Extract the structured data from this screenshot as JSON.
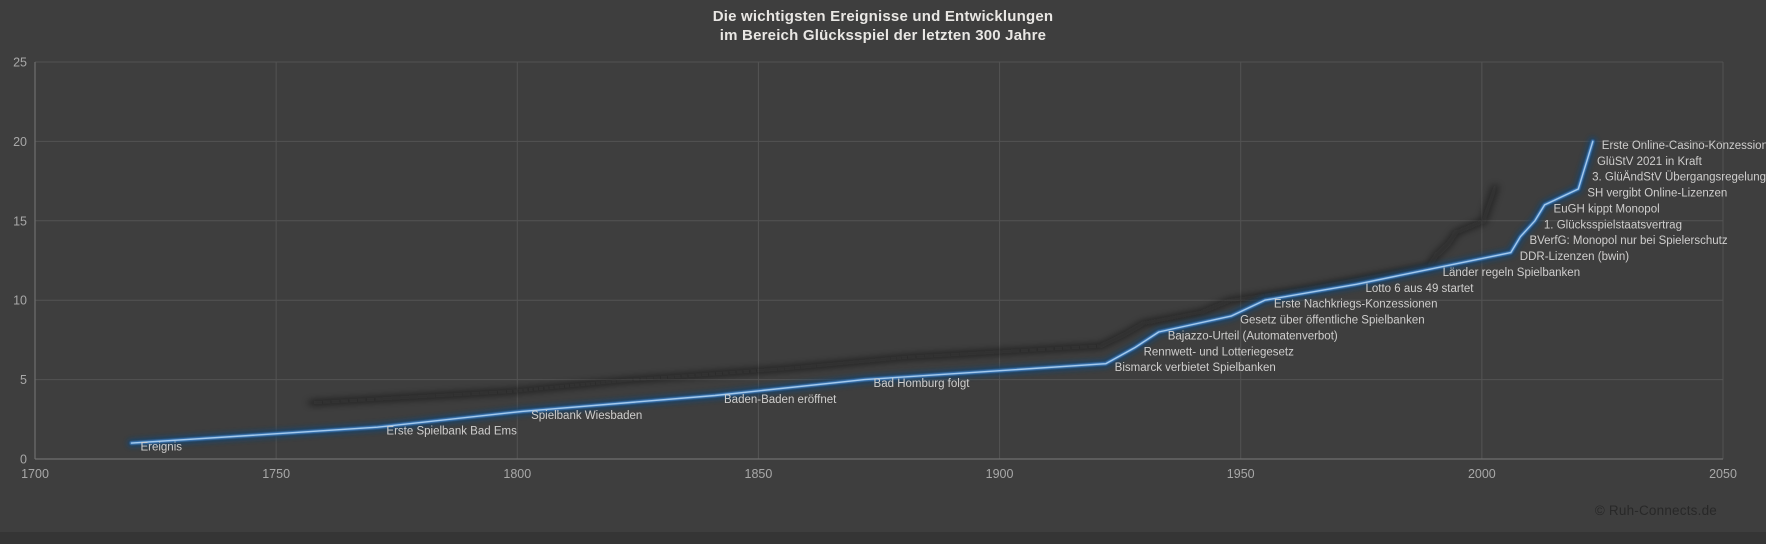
{
  "header": {
    "title_line1": "Die wichtigsten Ereignisse und Entwicklungen",
    "title_line2": "im Bereich Glücksspiel der letzten 300 Jahre"
  },
  "footer": {
    "copyright": "© Ruh-Connects.de"
  },
  "chart_data": {
    "type": "line",
    "title": "Die wichtigsten Ereignisse und Entwicklungen im Bereich Glücksspiel der letzten 300 Jahre",
    "xlabel": "",
    "ylabel": "",
    "xlim": [
      1700,
      2050
    ],
    "ylim": [
      0,
      25
    ],
    "x_ticks": [
      1700,
      1750,
      1800,
      1850,
      1900,
      1950,
      2000,
      2050
    ],
    "y_ticks": [
      0,
      5,
      10,
      15,
      20,
      25
    ],
    "grid": true,
    "legend": false,
    "points": [
      {
        "year": 1720,
        "value": 1,
        "label": "Ereignis"
      },
      {
        "year": 1771,
        "value": 2,
        "label": "Erste Spielbank Bad Ems"
      },
      {
        "year": 1801,
        "value": 3,
        "label": "Spielbank Wiesbaden"
      },
      {
        "year": 1841,
        "value": 4,
        "label": "Baden-Baden eröffnet"
      },
      {
        "year": 1872,
        "value": 5,
        "label": "Bad Homburg folgt"
      },
      {
        "year": 1922,
        "value": 6,
        "label": "Bismarck verbietet Spielbanken"
      },
      {
        "year": 1928,
        "value": 7,
        "label": "Rennwett- und Lotteriegesetz"
      },
      {
        "year": 1933,
        "value": 8,
        "label": "Bajazzo-Urteil (Automatenverbot)"
      },
      {
        "year": 1948,
        "value": 9,
        "label": "Gesetz über öffentliche Spielbanken"
      },
      {
        "year": 1955,
        "value": 10,
        "label": "Erste Nachkriegs-Konzessionen"
      },
      {
        "year": 1974,
        "value": 11,
        "label": "Lotto 6 aus 49 startet"
      },
      {
        "year": 1990,
        "value": 12,
        "label": "Länder regeln Spielbanken"
      },
      {
        "year": 2006,
        "value": 13,
        "label": "DDR-Lizenzen (bwin)"
      },
      {
        "year": 2008,
        "value": 14,
        "label": "BVerfG: Monopol nur bei Spielerschutz"
      },
      {
        "year": 2011,
        "value": 15,
        "label": "1. Glücksspielstaatsvertrag"
      },
      {
        "year": 2013,
        "value": 16,
        "label": "EuGH kippt Monopol"
      },
      {
        "year": 2020,
        "value": 17,
        "label": "SH vergibt Online-Lizenzen"
      },
      {
        "year": 2021,
        "value": 18,
        "label": "3. GlüÄndStV Übergangsregelung"
      },
      {
        "year": 2022,
        "value": 19,
        "label": "GlüStV 2021 in Kraft"
      },
      {
        "year": 2023,
        "value": 20,
        "label": "Erste Online-Casino-Konzessionen"
      }
    ],
    "colors": {
      "background": "#3e3e3e",
      "grid": "#535353",
      "axis": "#6f6f6f",
      "tick_text": "#a8a8a8",
      "label_text": "#cfcecd",
      "line_glow": "#16456f",
      "line_main": "#3c79b8",
      "line_core": "#aacdee",
      "shadow": "#0c0c0c",
      "title_text": "#e9e7e4",
      "copyright_text": "#282828"
    }
  }
}
